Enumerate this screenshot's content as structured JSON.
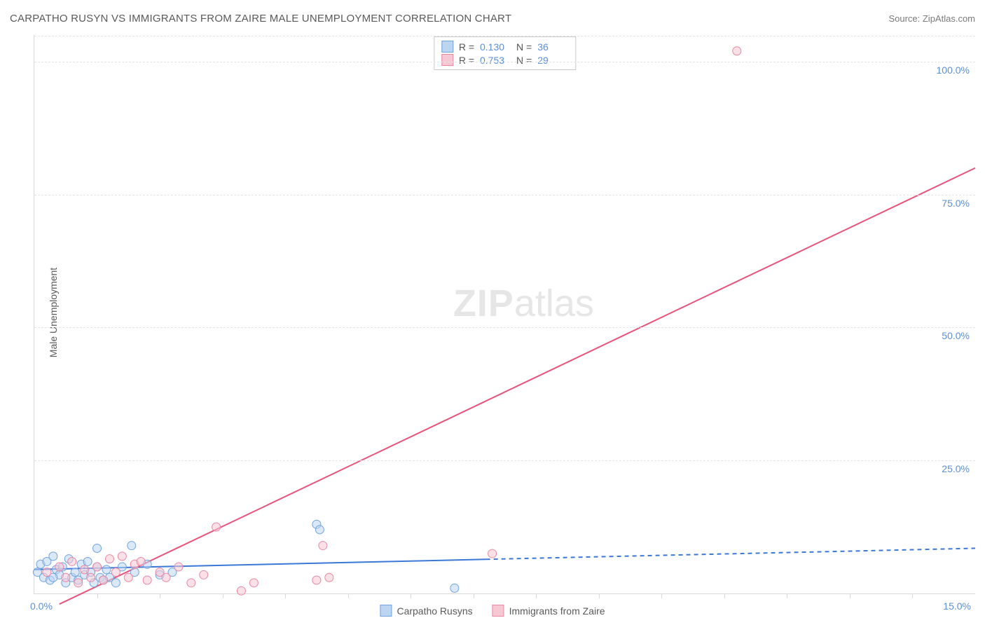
{
  "title": "CARPATHO RUSYN VS IMMIGRANTS FROM ZAIRE MALE UNEMPLOYMENT CORRELATION CHART",
  "source": "Source: ZipAtlas.com",
  "ylabel": "Male Unemployment",
  "watermark_bold": "ZIP",
  "watermark_rest": "atlas",
  "chart": {
    "type": "scatter",
    "xlim": [
      0,
      15
    ],
    "ylim": [
      0,
      105
    ],
    "x_origin_label": "0.0%",
    "x_max_label": "15.0%",
    "x_ticks": [
      1,
      2,
      3,
      4,
      5,
      6,
      7,
      8,
      9,
      10,
      11,
      12,
      13,
      14
    ],
    "y_gridlines": [
      25,
      50,
      75,
      100
    ],
    "y_tick_labels": [
      "25.0%",
      "50.0%",
      "75.0%",
      "100.0%"
    ],
    "grid_color": "#e4e4e4",
    "axis_color": "#d9d9d9",
    "background_color": "#ffffff",
    "tick_label_color": "#5a8fd6"
  },
  "series": [
    {
      "key": "carpatho",
      "name": "Carpatho Rusyns",
      "point_fill": "#bcd6f2",
      "point_stroke": "#6fa3e0",
      "line_color": "#3b78d8",
      "swatch_fill": "#bcd6f2",
      "swatch_border": "#6fa3e0",
      "marker_radius": 6,
      "fill_opacity": 0.55,
      "R": "0.130",
      "N": "36",
      "trend": {
        "x1": 0,
        "y1": 4.5,
        "x2": 15,
        "y2": 8.5,
        "solid_until_x": 7.2
      },
      "points": [
        [
          0.05,
          4.0
        ],
        [
          0.1,
          5.5
        ],
        [
          0.15,
          3.0
        ],
        [
          0.2,
          6.0
        ],
        [
          0.25,
          2.5
        ],
        [
          0.3,
          7.0
        ],
        [
          0.35,
          4.5
        ],
        [
          0.4,
          3.5
        ],
        [
          0.45,
          5.0
        ],
        [
          0.5,
          2.0
        ],
        [
          0.55,
          6.5
        ],
        [
          0.6,
          3.0
        ],
        [
          0.65,
          4.0
        ],
        [
          0.7,
          2.5
        ],
        [
          0.75,
          5.5
        ],
        [
          0.8,
          3.5
        ],
        [
          0.85,
          6.0
        ],
        [
          0.9,
          4.0
        ],
        [
          0.95,
          2.0
        ],
        [
          1.0,
          5.0
        ],
        [
          1.05,
          3.0
        ],
        [
          1.1,
          2.5
        ],
        [
          1.15,
          4.5
        ],
        [
          1.2,
          3.0
        ],
        [
          1.3,
          2.0
        ],
        [
          1.4,
          5.0
        ],
        [
          1.55,
          9.0
        ],
        [
          1.6,
          4.0
        ],
        [
          1.8,
          5.5
        ],
        [
          2.0,
          3.5
        ],
        [
          2.2,
          4.0
        ],
        [
          4.5,
          13.0
        ],
        [
          4.55,
          12.0
        ],
        [
          6.7,
          1.0
        ],
        [
          1.0,
          8.5
        ],
        [
          0.3,
          3.0
        ]
      ]
    },
    {
      "key": "zaire",
      "name": "Immigrants from Zaire",
      "point_fill": "#f6c8d4",
      "point_stroke": "#e986a3",
      "line_color": "#e9537b",
      "swatch_fill": "#f6c8d4",
      "swatch_border": "#e986a3",
      "marker_radius": 6,
      "fill_opacity": 0.55,
      "R": "0.753",
      "N": "29",
      "trend": {
        "x1": 0.4,
        "y1": -2,
        "x2": 15,
        "y2": 80,
        "solid_until_x": 15
      },
      "points": [
        [
          0.2,
          4.0
        ],
        [
          0.4,
          5.0
        ],
        [
          0.5,
          3.0
        ],
        [
          0.6,
          6.0
        ],
        [
          0.8,
          4.5
        ],
        [
          0.9,
          3.0
        ],
        [
          1.0,
          5.0
        ],
        [
          1.1,
          2.5
        ],
        [
          1.2,
          6.5
        ],
        [
          1.3,
          4.0
        ],
        [
          1.5,
          3.0
        ],
        [
          1.6,
          5.5
        ],
        [
          1.8,
          2.5
        ],
        [
          2.0,
          4.0
        ],
        [
          2.1,
          3.0
        ],
        [
          2.3,
          5.0
        ],
        [
          2.5,
          2.0
        ],
        [
          2.7,
          3.5
        ],
        [
          2.9,
          12.5
        ],
        [
          3.3,
          0.5
        ],
        [
          3.5,
          2.0
        ],
        [
          4.5,
          2.5
        ],
        [
          4.6,
          9.0
        ],
        [
          4.7,
          3.0
        ],
        [
          7.3,
          7.5
        ],
        [
          11.2,
          102.0
        ],
        [
          1.4,
          7.0
        ],
        [
          1.7,
          6.0
        ],
        [
          0.7,
          2.0
        ]
      ]
    }
  ],
  "stats_labels": {
    "R": "R =",
    "N": "N ="
  },
  "legend": {
    "items": [
      "Carpatho Rusyns",
      "Immigrants from Zaire"
    ]
  }
}
